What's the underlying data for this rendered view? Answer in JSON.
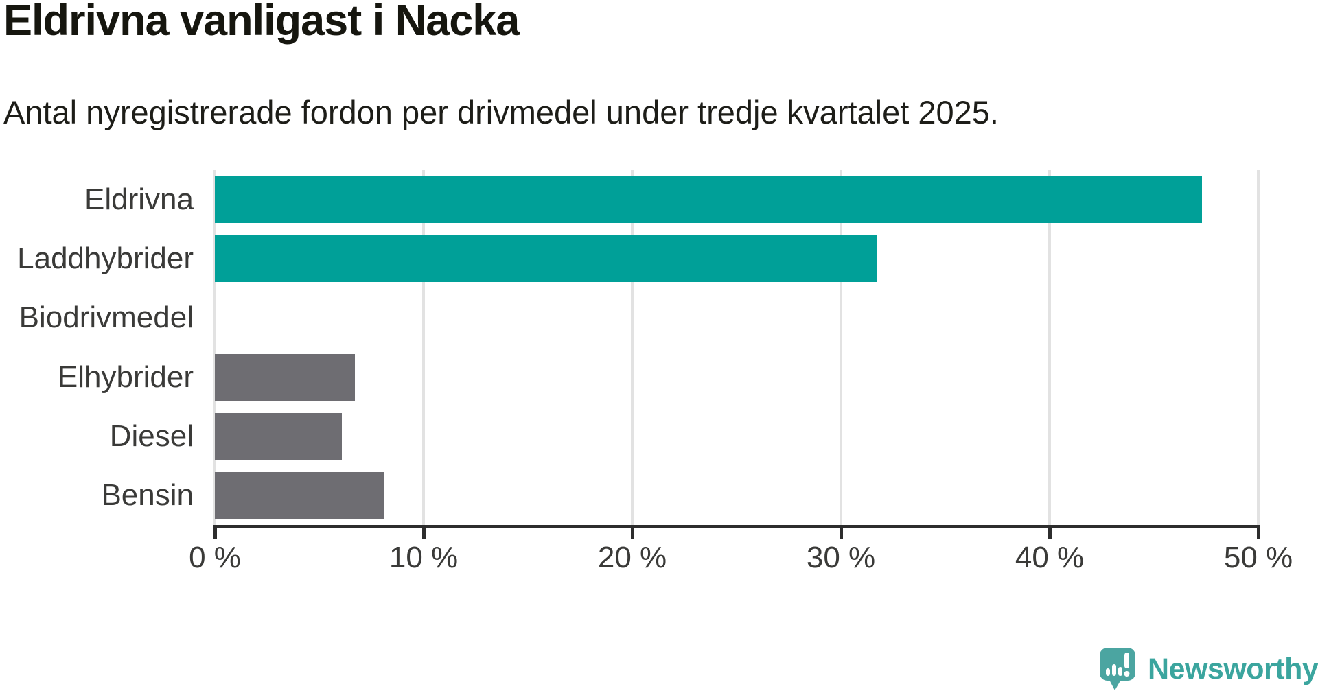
{
  "title": "Eldrivna vanligast i Nacka",
  "subtitle": "Antal nyregistrerade fordon per drivmedel under tredje kvartalet 2025.",
  "chart_data": {
    "type": "bar",
    "orientation": "horizontal",
    "title": "Eldrivna vanligast i Nacka",
    "subtitle": "Antal nyregistrerade fordon per drivmedel under tredje kvartalet 2025.",
    "categories": [
      "Eldrivna",
      "Laddhybrider",
      "Biodrivmedel",
      "Elhybrider",
      "Diesel",
      "Bensin"
    ],
    "values": [
      47.3,
      31.7,
      0,
      6.7,
      6.1,
      8.1
    ],
    "unit": "%",
    "xlim": [
      0,
      50
    ],
    "x_ticks": [
      0,
      10,
      20,
      30,
      40,
      50
    ],
    "x_tick_labels": [
      "0 %",
      "10 %",
      "20 %",
      "30 %",
      "40 %",
      "50 %"
    ],
    "grid": true,
    "legend": "none",
    "bar_colors": [
      "#00a098",
      "#00a098",
      "#6e6d72",
      "#6e6d72",
      "#6e6d72",
      "#6e6d72"
    ],
    "highlight_color": "#00a098",
    "default_color": "#6e6d72",
    "gridline_color": "#e2e2e2",
    "axis_color": "#2d2d2d"
  },
  "branding": {
    "logo_text": "Newsworthy",
    "logo_text_color": "#3ba59e",
    "icon_color": "#4ba5a1",
    "icon_name": "newsworthy-speech-bubble-chart-icon"
  }
}
